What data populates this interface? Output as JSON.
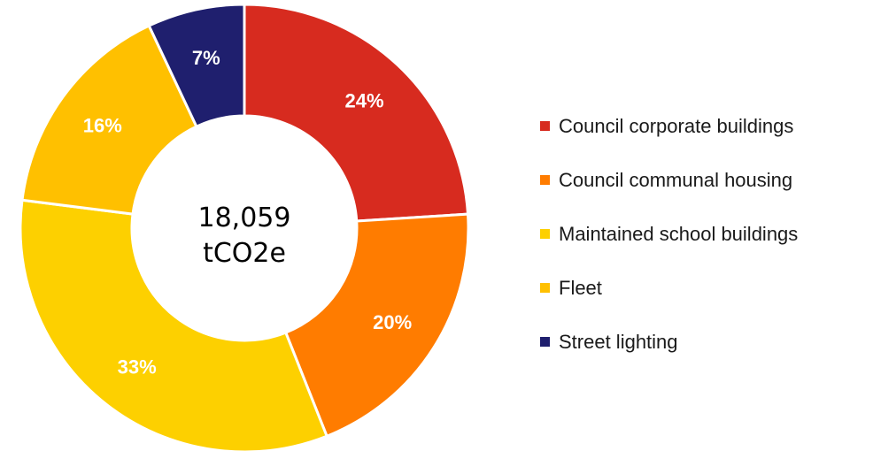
{
  "chart_data": {
    "type": "pie",
    "donut": true,
    "center_label": [
      "18,059",
      "tCO2e"
    ],
    "legend_position": "right",
    "categories": [
      "Council corporate buildings",
      "Council communal housing",
      "Maintained school buildings",
      "Fleet",
      "Street lighting"
    ],
    "values": [
      24,
      20,
      33,
      16,
      7
    ],
    "value_labels": [
      "24%",
      "20%",
      "33%",
      "16%",
      "7%"
    ],
    "colors": [
      "#d72b1f",
      "#ff7c00",
      "#fdd000",
      "#ffc000",
      "#1f1f6e"
    ]
  }
}
